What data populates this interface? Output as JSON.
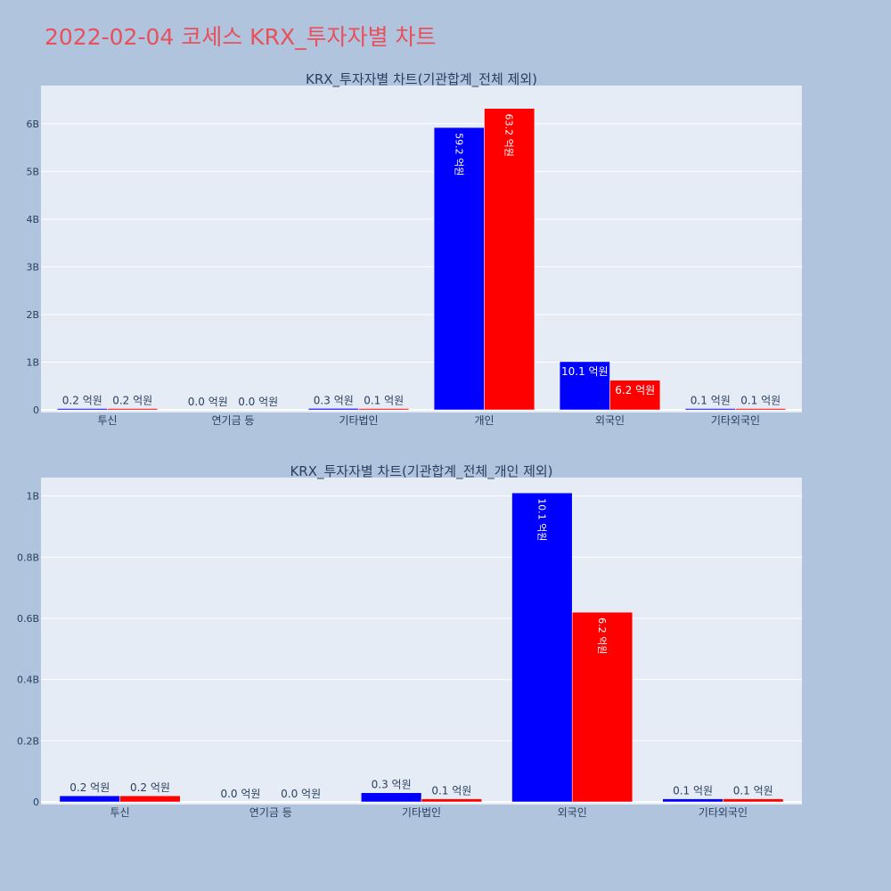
{
  "page": {
    "title": "2022-02-04 코세스 KRX_투자자별 차트",
    "background": "#b0c4de",
    "title_color": "#e8505b"
  },
  "colors": {
    "plot_bg": "#e5ecf6",
    "grid": "#ffffff",
    "series_a": "#0000ff",
    "series_b": "#ff0000",
    "text": "#2a3f5f"
  },
  "chart_data": [
    {
      "type": "bar",
      "title": "KRX_투자자별 차트(기관합계_전체 제외)",
      "categories": [
        "투신",
        "연기금 등",
        "기타법인",
        "개인",
        "외국인",
        "기타외국인"
      ],
      "series": [
        {
          "color": "#0000ff",
          "values": [
            20000000,
            0,
            30000000,
            5920000000,
            1010000000,
            10000000
          ],
          "labels": [
            "0.2 억원",
            "0.0 억원",
            "0.3 억원",
            "59.2 억원",
            "10.1 억원",
            "0.1 억원"
          ]
        },
        {
          "color": "#ff0000",
          "values": [
            20000000,
            0,
            10000000,
            6320000000,
            620000000,
            10000000
          ],
          "labels": [
            "0.2 억원",
            "0.0 억원",
            "0.1 억원",
            "63.2 억원",
            "6.2 억원",
            "0.1 억원"
          ]
        }
      ],
      "ylim": [
        0,
        6800000000
      ],
      "yticks": [
        0,
        1000000000,
        2000000000,
        3000000000,
        4000000000,
        5000000000,
        6000000000
      ],
      "ytick_labels": [
        "0",
        "1B",
        "2B",
        "3B",
        "4B",
        "5B",
        "6B"
      ],
      "grid": true
    },
    {
      "type": "bar",
      "title": "KRX_투자자별 차트(기관합계_전체_개인 제외)",
      "categories": [
        "투신",
        "연기금 등",
        "기타법인",
        "외국인",
        "기타외국인"
      ],
      "series": [
        {
          "color": "#0000ff",
          "values": [
            20000000,
            0,
            30000000,
            1010000000,
            10000000
          ],
          "labels": [
            "0.2 억원",
            "0.0 억원",
            "0.3 억원",
            "10.1 억원",
            "0.1 억원"
          ]
        },
        {
          "color": "#ff0000",
          "values": [
            20000000,
            0,
            10000000,
            620000000,
            10000000
          ],
          "labels": [
            "0.2 억원",
            "0.0 억원",
            "0.1 억원",
            "6.2 억원",
            "0.1 억원"
          ]
        }
      ],
      "ylim": [
        0,
        1060000000
      ],
      "yticks": [
        0,
        200000000,
        400000000,
        600000000,
        800000000,
        1000000000
      ],
      "ytick_labels": [
        "0",
        "0.2B",
        "0.4B",
        "0.6B",
        "0.8B",
        "1B"
      ],
      "grid": true
    }
  ]
}
